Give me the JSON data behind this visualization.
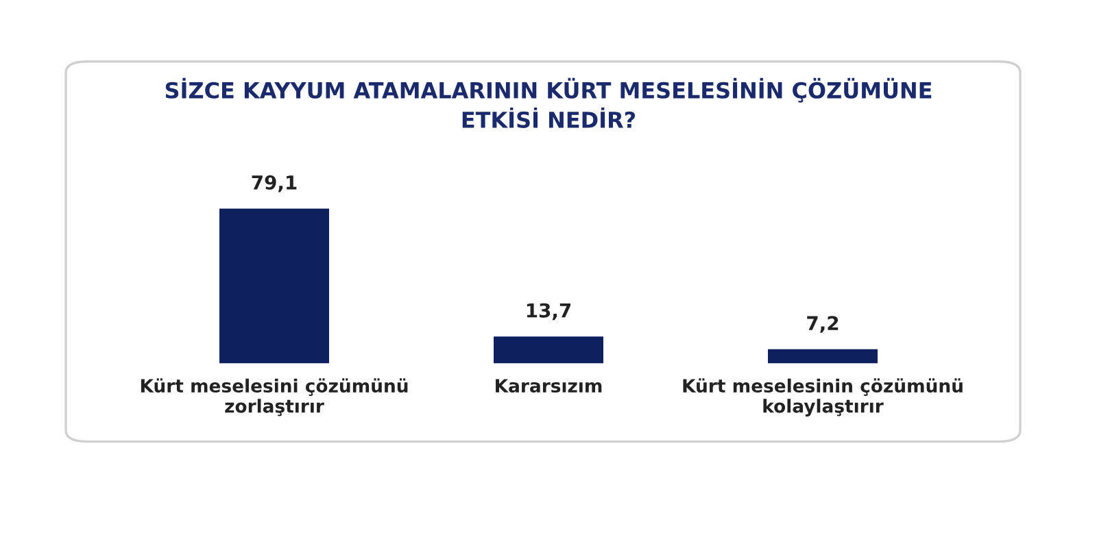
{
  "chart_data": {
    "type": "bar",
    "title": "SİZCE KAYYUM ATAMALARININ KÜRT MESELESİNİN ÇÖZÜMÜNE\nETKİSİ NEDİR?",
    "categories": [
      "Kürt meselesini çözümünü\nzorlaştırır",
      "Kararsızım",
      "Kürt meselesinin çözümünü\nkolaylaştırır"
    ],
    "values": [
      79.1,
      13.7,
      7.2
    ],
    "value_labels": [
      "79,1",
      "13,7",
      "7,2"
    ],
    "color": "#0d1f5c",
    "grid": false,
    "legend": false
  }
}
